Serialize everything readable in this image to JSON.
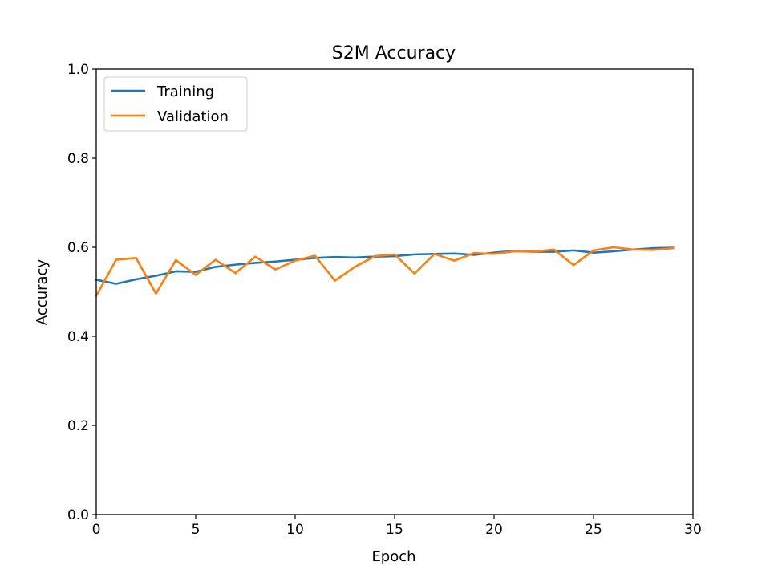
{
  "chart_data": {
    "type": "line",
    "title": "S2M Accuracy",
    "xlabel": "Epoch",
    "ylabel": "Accuracy",
    "xlim": [
      0,
      30
    ],
    "ylim": [
      0,
      1.0
    ],
    "xticks": [
      "0",
      "5",
      "10",
      "15",
      "20",
      "25",
      "30"
    ],
    "yticks": [
      "0.0",
      "0.2",
      "0.4",
      "0.6",
      "0.8",
      "1.0"
    ],
    "grid": false,
    "legend_position": "top-left",
    "x": [
      0,
      1,
      2,
      3,
      4,
      5,
      6,
      7,
      8,
      9,
      10,
      11,
      12,
      13,
      14,
      15,
      16,
      17,
      18,
      19,
      20,
      21,
      22,
      23,
      24,
      25,
      26,
      27,
      28,
      29
    ],
    "series": [
      {
        "name": "Training",
        "color": "#1f77b4",
        "values": [
          0.527,
          0.518,
          0.528,
          0.536,
          0.546,
          0.545,
          0.556,
          0.561,
          0.565,
          0.568,
          0.572,
          0.576,
          0.578,
          0.577,
          0.579,
          0.58,
          0.584,
          0.585,
          0.586,
          0.583,
          0.588,
          0.592,
          0.59,
          0.59,
          0.593,
          0.588,
          0.591,
          0.595,
          0.598,
          0.599
        ]
      },
      {
        "name": "Validation",
        "color": "#ff7f0e",
        "values": [
          0.491,
          0.572,
          0.576,
          0.496,
          0.571,
          0.538,
          0.572,
          0.542,
          0.579,
          0.55,
          0.57,
          0.581,
          0.525,
          0.556,
          0.58,
          0.584,
          0.541,
          0.585,
          0.57,
          0.587,
          0.585,
          0.591,
          0.59,
          0.595,
          0.56,
          0.593,
          0.6,
          0.595,
          0.594,
          0.598
        ]
      }
    ]
  }
}
